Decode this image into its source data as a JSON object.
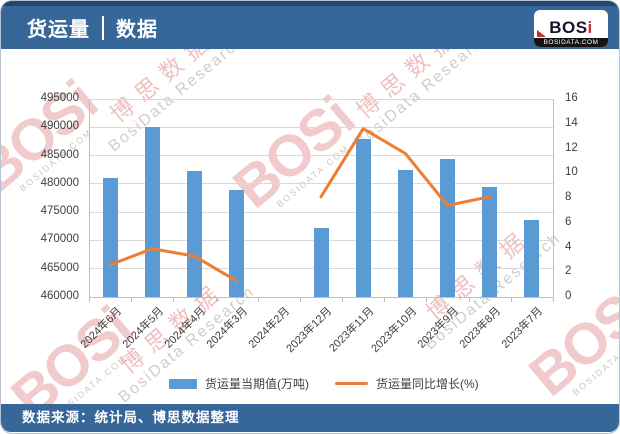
{
  "header": {
    "title_primary": "货运量",
    "title_secondary": "数据"
  },
  "logo": {
    "brand": "BOSi",
    "domain": "BOSIDATA.COM"
  },
  "watermark": {
    "brand": "BOSi",
    "brand_cn": "博思数据",
    "brand_en": "BosiData Research",
    "domain": "BOSIDATA.COM"
  },
  "footer": {
    "source": "数据来源：统计局、博思数据整理"
  },
  "colors": {
    "header_blue": "#376799",
    "bar_blue": "#5B9BD5",
    "line_orange": "#ED7D31",
    "gridline": "#d9d9d9"
  },
  "chart_data": {
    "type": "bar",
    "subtype": "bar+line dual axis",
    "categories": [
      "2024年6月",
      "2024年5月",
      "2024年4月",
      "2024年3月",
      "2024年2月",
      "2023年12月",
      "2023年11月",
      "2023年10月",
      "2023年9月",
      "2023年8月",
      "2023年7月"
    ],
    "series": [
      {
        "name": "货运量当期值(万吨)",
        "type": "bar",
        "axis": "left",
        "color": "#5B9BD5",
        "values": [
          481000,
          490000,
          482300,
          479000,
          null,
          472200,
          488000,
          482400,
          484400,
          479400,
          473600
        ]
      },
      {
        "name": "货运量同比增长(%)",
        "type": "line",
        "axis": "right",
        "color": "#ED7D31",
        "values": [
          2.6,
          3.9,
          3.3,
          1.3,
          null,
          8.1,
          13.6,
          11.6,
          7.4,
          8.1,
          null
        ]
      }
    ],
    "left_axis": {
      "min": 460000,
      "max": 495000,
      "step": 5000,
      "ticks": [
        "460000",
        "465000",
        "470000",
        "475000",
        "480000",
        "485000",
        "490000",
        "495000"
      ]
    },
    "right_axis": {
      "min": 0,
      "max": 16,
      "step": 2,
      "ticks": [
        "0",
        "2",
        "4",
        "6",
        "8",
        "10",
        "12",
        "14",
        "16"
      ]
    },
    "grid": true,
    "legend_position": "bottom",
    "title": "",
    "xlabel": "",
    "ylabel": ""
  }
}
